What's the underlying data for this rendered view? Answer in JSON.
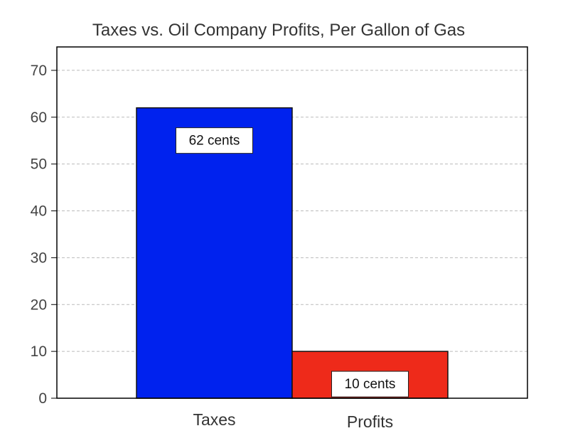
{
  "chart_data": {
    "type": "bar",
    "title": "Taxes vs. Oil Company Profits, Per Gallon of Gas",
    "xlabel": "",
    "ylabel": "",
    "categories": [
      "Taxes",
      "Profits"
    ],
    "values": [
      62,
      10
    ],
    "data_labels": [
      "62 cents",
      "10 cents"
    ],
    "colors": [
      "#0022ee",
      "#ee2a1a"
    ],
    "ylim": [
      0,
      75
    ],
    "yticks": [
      0,
      10,
      20,
      30,
      40,
      50,
      60,
      70
    ],
    "grid": true,
    "legend": "none"
  }
}
